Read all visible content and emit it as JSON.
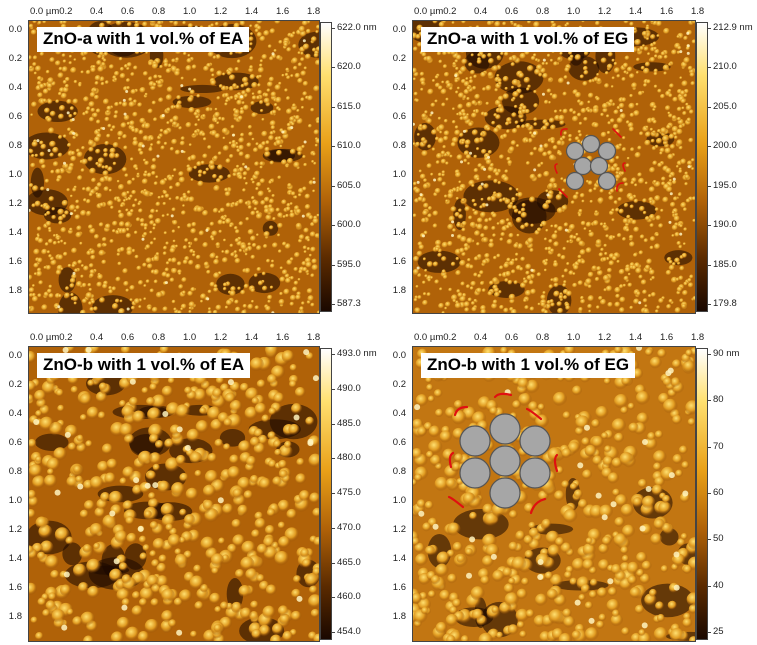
{
  "x_tick_labels": [
    "0.0 µm0.2",
    "0.4",
    "0.6",
    "0.8",
    "1.0",
    "1.2",
    "1.4",
    "1.6",
    "1.8"
  ],
  "y_tick_labels": [
    "0.0",
    "0.2",
    "0.4",
    "0.6",
    "0.8",
    "1.0",
    "1.2",
    "1.4",
    "1.6",
    "1.8"
  ],
  "panels": [
    {
      "label": "ZnO-a with 1 vol.% of EA",
      "colorbar_labels": [
        "622.0 nm",
        "620.0",
        "615.0",
        "610.0",
        "605.0",
        "600.0",
        "595.0",
        "587.3"
      ],
      "grain": "fine",
      "has_spheres": false
    },
    {
      "label": "ZnO-a with 1 vol.% of EG",
      "colorbar_labels": [
        "212.9 nm",
        "210.0",
        "205.0",
        "200.0",
        "195.0",
        "190.0",
        "185.0",
        "179.8"
      ],
      "grain": "fine",
      "has_spheres": true
    },
    {
      "label": "ZnO-b with 1 vol.% of EA",
      "colorbar_labels": [
        "493.0 nm",
        "490.0",
        "485.0",
        "480.0",
        "475.0",
        "470.0",
        "465.0",
        "460.0",
        "454.0"
      ],
      "grain": "coarse",
      "has_spheres": false
    },
    {
      "label": "ZnO-b with 1 vol.% of EG",
      "colorbar_labels": [
        "90 nm",
        "80",
        "70",
        "60",
        "50",
        "40",
        "25"
      ],
      "grain": "coarse-bright",
      "has_spheres": true
    }
  ],
  "colors": {
    "dark": "#1a0800",
    "mid": "#b06208",
    "bright": "#ffe070",
    "sphere_fill": "#a6a6a6",
    "sphere_stroke": "#555555",
    "bracket": "#e01010"
  }
}
